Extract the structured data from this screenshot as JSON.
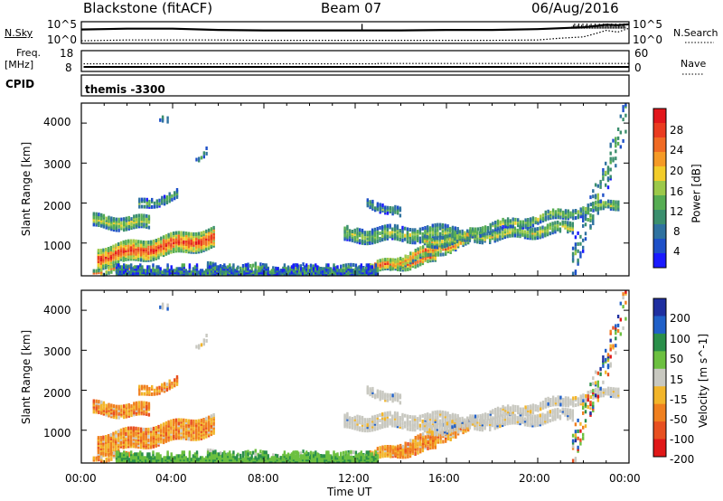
{
  "header": {
    "station": "Blackstone (fitACF)",
    "beam": "Beam 07",
    "date": "06/Aug/2016"
  },
  "top_panels": {
    "nsky_label": "N.Sky",
    "nsearch_label": "N.Search",
    "freq_label_line1": "Freq.",
    "freq_label_line2": "[MHz]",
    "nave_label": "Nave",
    "cpid_label": "CPID",
    "cpid_value": "themis -3300",
    "noise_ticks": [
      "10^5",
      "10^0"
    ],
    "freq_ticks": [
      "18",
      "8"
    ],
    "nave_ticks": [
      "60",
      "0"
    ]
  },
  "chart_data": [
    {
      "type": "line",
      "panel": "noise",
      "series": [
        {
          "name": "N.Sky",
          "style": "solid",
          "x": [
            0,
            2,
            4,
            6,
            8,
            10,
            12,
            14,
            16,
            18,
            20,
            21,
            22,
            22.5,
            23,
            23.5,
            24
          ],
          "y": [
            3.2,
            3.4,
            3.4,
            3.1,
            3.0,
            3.0,
            3.0,
            3.0,
            3.1,
            3.1,
            3.3,
            3.5,
            3.7,
            4.0,
            4.3,
            4.2,
            4.4
          ]
        },
        {
          "name": "N.Search",
          "style": "dotted",
          "x": [
            0,
            2,
            4,
            6,
            8,
            10,
            12,
            14,
            16,
            18,
            20,
            21,
            22,
            22.5,
            23,
            23.5,
            24
          ],
          "y": [
            0.6,
            0.8,
            0.8,
            0.8,
            0.7,
            0.7,
            0.7,
            0.7,
            0.7,
            0.7,
            0.8,
            1.2,
            1.5,
            2.2,
            3.0,
            2.6,
            3.5
          ]
        }
      ],
      "ylim_log10": [
        0,
        5
      ]
    },
    {
      "type": "line",
      "panel": "freq_nave",
      "series": [
        {
          "name": "Freq.",
          "x": [
            0.1,
            24
          ],
          "y": [
            10.2,
            10.2
          ]
        },
        {
          "name": "Nave",
          "style": "dotted",
          "x": [
            0.1,
            13,
            13,
            24
          ],
          "y": [
            22,
            22,
            23,
            23
          ]
        }
      ],
      "ylim_freq": [
        8,
        18
      ],
      "ylim_nave": [
        0,
        60
      ]
    },
    {
      "type": "heatmap",
      "panel": "power",
      "xlabel": "",
      "ylabel": "Slant Range [km]",
      "xlim": [
        0,
        24
      ],
      "ylim": [
        180,
        4500
      ],
      "yticks": [
        1000,
        2000,
        3000,
        4000
      ],
      "colorbar": {
        "label": "Power [dB]",
        "ticks": [
          4,
          8,
          12,
          16,
          20,
          24,
          28
        ],
        "range": [
          0,
          32
        ],
        "colors": [
          "#1a1aff",
          "#1e50c8",
          "#2f72a0",
          "#3b8f6e",
          "#56ad53",
          "#9cc94a",
          "#f2cc2a",
          "#f59a26",
          "#f06a23",
          "#ea3b1f",
          "#e2161b"
        ]
      }
    },
    {
      "type": "heatmap",
      "panel": "velocity",
      "xlabel": "Time UT",
      "ylabel": "Slant Range [km]",
      "xlim": [
        0,
        24
      ],
      "ylim": [
        180,
        4500
      ],
      "yticks": [
        1000,
        2000,
        3000,
        4000
      ],
      "xticks": [
        "00:00",
        "04:00",
        "08:00",
        "12:00",
        "16:00",
        "20:00",
        "00:00"
      ],
      "colorbar": {
        "label": "Velocity [m s^-1]",
        "ticks": [
          "200",
          "100",
          "50",
          "15",
          "-15",
          "-50",
          "-100",
          "-200"
        ],
        "colors": [
          "#1f2fa0",
          "#2060c8",
          "#2a8f4a",
          "#6cc040",
          "#c8c8c0",
          "#f2b52a",
          "#f0801f",
          "#e85020",
          "#e01818"
        ]
      }
    }
  ],
  "echo_regions": [
    {
      "t": [
        0.5,
        3.0
      ],
      "r0": 1550,
      "r1": 1500,
      "w": 300,
      "vel": "neg",
      "pw": 0.55,
      "d": 0.9
    },
    {
      "t": [
        2.5,
        4.2
      ],
      "r0": 1950,
      "r1": 2200,
      "w": 180,
      "vel": "neg",
      "pw": 0.4,
      "d": 0.75
    },
    {
      "t": [
        0.7,
        5.8
      ],
      "r0": 650,
      "r1": 1150,
      "w": 480,
      "vel": "neg",
      "pw": 0.9,
      "d": 0.95
    },
    {
      "t": [
        0.5,
        2.5
      ],
      "r0": 300,
      "r1": 350,
      "w": 150,
      "vel": "neg",
      "pw": 0.8,
      "d": 0.7
    },
    {
      "t": [
        5.5,
        12.5
      ],
      "r0": 350,
      "r1": 300,
      "w": 180,
      "vel": "pos",
      "pw": 0.5,
      "d": 0.55
    },
    {
      "t": [
        11.5,
        16.5
      ],
      "r0": 1200,
      "r1": 1250,
      "w": 320,
      "vel": "grey",
      "pw": 0.5,
      "d": 0.8
    },
    {
      "t": [
        12.5,
        15.5
      ],
      "r0": 350,
      "r1": 650,
      "w": 250,
      "vel": "neg",
      "pw": 0.85,
      "d": 0.85
    },
    {
      "t": [
        13.5,
        17.0
      ],
      "r0": 500,
      "r1": 1100,
      "w": 260,
      "vel": "neg",
      "pw": 0.75,
      "d": 0.8
    },
    {
      "t": [
        15.0,
        21.5
      ],
      "r0": 1050,
      "r1": 1400,
      "w": 260,
      "vel": "grey",
      "pw": 0.55,
      "d": 0.85
    },
    {
      "t": [
        17.0,
        23.5
      ],
      "r0": 1300,
      "r1": 2000,
      "w": 220,
      "vel": "grey",
      "pw": 0.5,
      "d": 0.8
    },
    {
      "t": [
        12.5,
        14.0
      ],
      "r0": 2050,
      "r1": 1700,
      "w": 180,
      "vel": "grey",
      "pw": 0.35,
      "d": 0.7
    },
    {
      "t": [
        21.5,
        24.0
      ],
      "r0": 500,
      "r1": 4400,
      "w": 900,
      "vel": "mix",
      "pw": 0.4,
      "d": 0.25
    },
    {
      "t": [
        3.3,
        3.9
      ],
      "r0": 4150,
      "r1": 4150,
      "w": 120,
      "vel": "grey",
      "pw": 0.35,
      "d": 0.6
    },
    {
      "t": [
        5.0,
        5.5
      ],
      "r0": 3000,
      "r1": 3400,
      "w": 220,
      "vel": "grey",
      "pw": 0.35,
      "d": 0.3
    }
  ]
}
